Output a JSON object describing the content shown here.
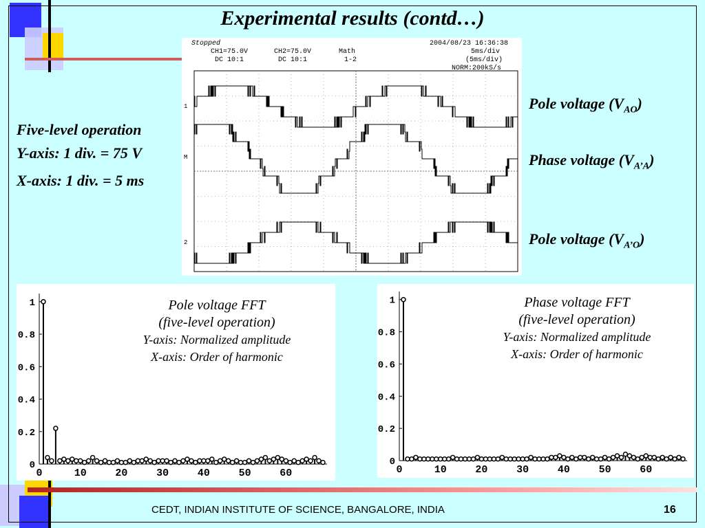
{
  "slide": {
    "title": "Experimental results (contd…)",
    "footer": "CEDT, INDIAN INSTITUTE OF SCIENCE, BANGALORE, INDIA",
    "page_number": "16"
  },
  "side_notes": [
    "Five-level operation",
    "Y-axis: 1 div. = 75 V",
    "X-axis: 1 div. = 5 ms"
  ],
  "scope": {
    "status": "Stopped",
    "datetime": "2004/08/23  16:36:38",
    "ch1": "CH1=75.0V",
    "ch1_coupling": "DC  10:1",
    "ch2": "CH2=75.0V",
    "ch2_coupling": "DC  10:1",
    "math": "Math",
    "math_expr": "1-2",
    "timebase": "5ms/div",
    "timebase2": "(5ms/div)",
    "sample": "NORM:200kS/s",
    "markers": [
      "1",
      "M",
      "2"
    ]
  },
  "trace_labels": {
    "pole_ao": {
      "text": "Pole voltage (V",
      "sub": "AO",
      "end": ")"
    },
    "phase_aa": {
      "text": "Phase voltage (V",
      "sub": "A’A",
      "end": ")"
    },
    "pole_a2o": {
      "text": "Pole voltage (V",
      "sub": "A’O",
      "end": ")"
    }
  },
  "fft_left": {
    "caption": [
      "Pole voltage FFT",
      "(five-level operation)",
      "Y-axis: Normalized amplitude",
      "X-axis: Order of harmonic"
    ]
  },
  "fft_right": {
    "caption": [
      "Phase voltage FFT",
      "(five-level operation)",
      "Y-axis: Normalized amplitude",
      "X-axis: Order of harmonic"
    ]
  },
  "chart_data": [
    {
      "type": "scatter",
      "x_ticks": [
        0,
        10,
        20,
        30,
        40,
        50,
        60
      ],
      "y_ticks": [
        "0",
        "0.2",
        "0.4",
        "0.6",
        "0.8",
        "1"
      ],
      "xlim": [
        0,
        70
      ],
      "ylim": [
        0,
        1.05
      ],
      "x": [
        1,
        2,
        3,
        4,
        5,
        6,
        7,
        8,
        9,
        10,
        11,
        12,
        13,
        14,
        15,
        16,
        17,
        18,
        19,
        20,
        21,
        22,
        23,
        24,
        25,
        26,
        27,
        28,
        29,
        30,
        31,
        32,
        33,
        34,
        35,
        36,
        37,
        38,
        39,
        40,
        41,
        42,
        43,
        44,
        45,
        46,
        47,
        48,
        49,
        50,
        51,
        52,
        53,
        54,
        55,
        56,
        57,
        58,
        59,
        60,
        61,
        62,
        63,
        64,
        65,
        66,
        67,
        68,
        69
      ],
      "values": [
        1.0,
        0.04,
        0.02,
        0.22,
        0.02,
        0.03,
        0.02,
        0.03,
        0.02,
        0.02,
        0.01,
        0.02,
        0.04,
        0.02,
        0.01,
        0.02,
        0.01,
        0.01,
        0.02,
        0.01,
        0.01,
        0.02,
        0.01,
        0.02,
        0.02,
        0.03,
        0.02,
        0.01,
        0.02,
        0.02,
        0.02,
        0.01,
        0.02,
        0.01,
        0.02,
        0.03,
        0.02,
        0.01,
        0.02,
        0.02,
        0.02,
        0.03,
        0.01,
        0.02,
        0.03,
        0.02,
        0.01,
        0.02,
        0.01,
        0.01,
        0.02,
        0.01,
        0.02,
        0.03,
        0.04,
        0.02,
        0.03,
        0.04,
        0.03,
        0.02,
        0.01,
        0.02,
        0.01,
        0.02,
        0.03,
        0.02,
        0.04,
        0.02,
        0.01
      ]
    },
    {
      "type": "scatter",
      "x_ticks": [
        0,
        10,
        20,
        30,
        40,
        50,
        60
      ],
      "y_ticks": [
        "0",
        "0.2",
        "0.4",
        "0.6",
        "0.8",
        "1"
      ],
      "xlim": [
        0,
        70
      ],
      "ylim": [
        0,
        1.05
      ],
      "x": [
        1,
        2,
        3,
        4,
        5,
        6,
        7,
        8,
        9,
        10,
        11,
        12,
        13,
        14,
        15,
        16,
        17,
        18,
        19,
        20,
        21,
        22,
        23,
        24,
        25,
        26,
        27,
        28,
        29,
        30,
        31,
        32,
        33,
        34,
        35,
        36,
        37,
        38,
        39,
        40,
        41,
        42,
        43,
        44,
        45,
        46,
        47,
        48,
        49,
        50,
        51,
        52,
        53,
        54,
        55,
        56,
        57,
        58,
        59,
        60,
        61,
        62,
        63,
        64,
        65,
        66,
        67,
        68,
        69
      ],
      "values": [
        1.0,
        0.01,
        0.01,
        0.02,
        0.01,
        0.01,
        0.01,
        0.01,
        0.01,
        0.01,
        0.01,
        0.01,
        0.02,
        0.01,
        0.01,
        0.01,
        0.01,
        0.01,
        0.02,
        0.01,
        0.01,
        0.01,
        0.01,
        0.01,
        0.02,
        0.01,
        0.01,
        0.01,
        0.01,
        0.01,
        0.01,
        0.02,
        0.01,
        0.01,
        0.01,
        0.01,
        0.02,
        0.02,
        0.03,
        0.02,
        0.01,
        0.02,
        0.01,
        0.02,
        0.02,
        0.01,
        0.02,
        0.01,
        0.01,
        0.02,
        0.01,
        0.02,
        0.03,
        0.02,
        0.04,
        0.03,
        0.02,
        0.01,
        0.02,
        0.03,
        0.02,
        0.02,
        0.01,
        0.02,
        0.01,
        0.02,
        0.01,
        0.02,
        0.01
      ]
    }
  ]
}
